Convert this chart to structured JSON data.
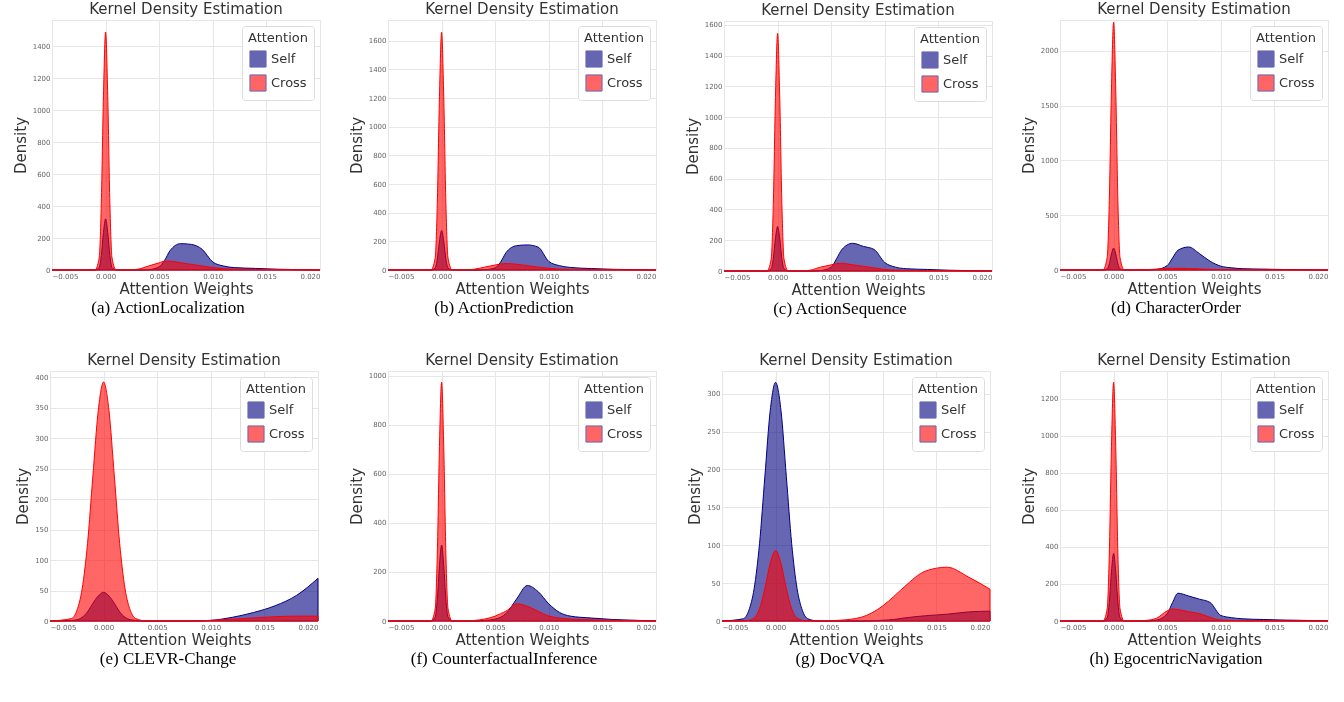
{
  "chart_data": [
    {
      "type": "area",
      "title": "Kernel Density Estimation",
      "xlabel": "Attention Weights",
      "ylabel": "Density",
      "legend_title": "Attention",
      "legend": "top right",
      "grid": true,
      "annotations": [
        "(a) ActionLocalization"
      ],
      "x": [
        -0.005,
        -0.001,
        -0.0006,
        -0.0004,
        -0.0002,
        0,
        0.0002,
        0.0004,
        0.0006,
        0.001,
        0.002,
        0.003,
        0.004,
        0.005,
        0.0055,
        0.006,
        0.007,
        0.008,
        0.009,
        0.01,
        0.011,
        0.012,
        0.014,
        0.016,
        0.018,
        0.02
      ],
      "xlim": [
        -0.005,
        0.02
      ],
      "xticks": [
        {
          "value": -0.005,
          "label": "−0.005"
        },
        {
          "value": 0,
          "label": "0.000"
        },
        {
          "value": 0.005,
          "label": "0.005"
        },
        {
          "value": 0.01,
          "label": "0.010"
        },
        {
          "value": 0.015,
          "label": "0.015"
        },
        {
          "value": 0.02,
          "label": "0.020"
        }
      ],
      "ylim": [
        0,
        1565
      ],
      "yticks": [
        0,
        200,
        400,
        600,
        800,
        1000,
        1200,
        1400
      ],
      "series": [
        {
          "name": "Self",
          "color": "#000080",
          "values": [
            0,
            0,
            16,
            90,
            235,
            320,
            235,
            90,
            16,
            0,
            0,
            0,
            2,
            20,
            60,
            120,
            165,
            160,
            130,
            50,
            25,
            15,
            10,
            5,
            2,
            0
          ]
        },
        {
          "name": "Cross",
          "color": "#ff0000",
          "values": [
            0,
            0,
            75,
            415,
            1090,
            1490,
            1090,
            415,
            75,
            0,
            0,
            5,
            25,
            45,
            55,
            55,
            45,
            35,
            25,
            15,
            8,
            5,
            3,
            2,
            1,
            0
          ]
        }
      ]
    },
    {
      "type": "area",
      "title": "Kernel Density Estimation",
      "xlabel": "Attention Weights",
      "ylabel": "Density",
      "legend_title": "Attention",
      "legend": "top right",
      "grid": true,
      "annotations": [
        "(b) ActionPrediction"
      ],
      "x": [
        -0.005,
        -0.001,
        -0.0006,
        -0.0004,
        -0.0002,
        0,
        0.0002,
        0.0004,
        0.0006,
        0.001,
        0.002,
        0.003,
        0.004,
        0.005,
        0.0055,
        0.006,
        0.007,
        0.008,
        0.009,
        0.01,
        0.011,
        0.012,
        0.014,
        0.016,
        0.018,
        0.02
      ],
      "xlim": [
        -0.005,
        0.02
      ],
      "xticks": [
        {
          "value": -0.005,
          "label": "−0.005"
        },
        {
          "value": 0,
          "label": "0.000"
        },
        {
          "value": 0.005,
          "label": "0.005"
        },
        {
          "value": 0.01,
          "label": "0.010"
        },
        {
          "value": 0.015,
          "label": "0.015"
        },
        {
          "value": 0.02,
          "label": "0.020"
        }
      ],
      "ylim": [
        0,
        1745
      ],
      "yticks": [
        0,
        200,
        400,
        600,
        800,
        1000,
        1200,
        1400,
        1600
      ],
      "series": [
        {
          "name": "Self",
          "color": "#000080",
          "values": [
            0,
            0,
            14,
            77,
            200,
            275,
            200,
            77,
            14,
            0,
            0,
            0,
            2,
            15,
            55,
            120,
            170,
            175,
            160,
            60,
            30,
            18,
            10,
            5,
            2,
            0
          ]
        },
        {
          "name": "Cross",
          "color": "#ff0000",
          "values": [
            0,
            0,
            83,
            465,
            1210,
            1660,
            1210,
            465,
            83,
            0,
            0,
            5,
            20,
            35,
            42,
            45,
            40,
            30,
            20,
            12,
            6,
            4,
            2,
            1,
            0,
            0
          ]
        }
      ]
    },
    {
      "type": "area",
      "title": "Kernel Density Estimation",
      "xlabel": "Attention Weights",
      "ylabel": "Density",
      "legend_title": "Attention",
      "legend": "top right",
      "grid": true,
      "annotations": [
        "(c) ActionSequence"
      ],
      "x": [
        -0.005,
        -0.001,
        -0.0006,
        -0.0004,
        -0.0002,
        0,
        0.0002,
        0.0004,
        0.0006,
        0.001,
        0.002,
        0.003,
        0.004,
        0.005,
        0.0055,
        0.006,
        0.007,
        0.008,
        0.009,
        0.01,
        0.011,
        0.012,
        0.014,
        0.016,
        0.018,
        0.02
      ],
      "xlim": [
        -0.005,
        0.02
      ],
      "xticks": [
        {
          "value": -0.005,
          "label": "−0.005"
        },
        {
          "value": 0,
          "label": "0.000"
        },
        {
          "value": 0.005,
          "label": "0.005"
        },
        {
          "value": 0.01,
          "label": "0.010"
        },
        {
          "value": 0.015,
          "label": "0.015"
        },
        {
          "value": 0.02,
          "label": "0.020"
        }
      ],
      "ylim": [
        0,
        1625
      ],
      "yticks": [
        0,
        200,
        400,
        600,
        800,
        1000,
        1200,
        1400,
        1600
      ],
      "series": [
        {
          "name": "Self",
          "color": "#000080",
          "values": [
            0,
            0,
            15,
            81,
            212,
            290,
            212,
            81,
            15,
            0,
            0,
            0,
            3,
            25,
            80,
            140,
            180,
            160,
            140,
            55,
            25,
            15,
            10,
            5,
            2,
            0
          ]
        },
        {
          "name": "Cross",
          "color": "#ff0000",
          "values": [
            0,
            0,
            77,
            433,
            1128,
            1545,
            1128,
            433,
            77,
            0,
            0,
            5,
            25,
            40,
            48,
            50,
            40,
            30,
            20,
            10,
            6,
            4,
            2,
            1,
            0,
            0
          ]
        }
      ]
    },
    {
      "type": "area",
      "title": "Kernel Density Estimation",
      "xlabel": "Attention Weights",
      "ylabel": "Density",
      "legend_title": "Attention",
      "legend": "top right",
      "grid": true,
      "annotations": [
        "(d) CharacterOrder"
      ],
      "x": [
        -0.005,
        -0.001,
        -0.0006,
        -0.0004,
        -0.0002,
        0,
        0.0002,
        0.0004,
        0.0006,
        0.001,
        0.002,
        0.003,
        0.004,
        0.005,
        0.0055,
        0.006,
        0.007,
        0.008,
        0.009,
        0.01,
        0.011,
        0.012,
        0.014,
        0.016,
        0.018,
        0.02
      ],
      "xlim": [
        -0.005,
        0.02
      ],
      "xticks": [
        {
          "value": -0.005,
          "label": "−0.005"
        },
        {
          "value": 0,
          "label": "0.000"
        },
        {
          "value": 0.005,
          "label": "0.005"
        },
        {
          "value": 0.01,
          "label": "0.010"
        },
        {
          "value": 0.015,
          "label": "0.015"
        },
        {
          "value": 0.02,
          "label": "0.020"
        }
      ],
      "ylim": [
        0,
        2280
      ],
      "yticks": [
        0,
        500,
        1000,
        1500,
        2000
      ],
      "series": [
        {
          "name": "Self",
          "color": "#000080",
          "values": [
            0,
            0,
            10,
            56,
            146,
            200,
            146,
            56,
            10,
            0,
            0,
            0,
            5,
            40,
            110,
            180,
            210,
            150,
            80,
            35,
            20,
            12,
            8,
            4,
            2,
            0
          ]
        },
        {
          "name": "Cross",
          "color": "#ff0000",
          "values": [
            0,
            0,
            113,
            633,
            1650,
            2260,
            1650,
            633,
            113,
            0,
            0,
            2,
            8,
            15,
            16,
            16,
            14,
            10,
            6,
            3,
            2,
            1,
            0,
            0,
            0,
            0
          ]
        }
      ]
    },
    {
      "type": "area",
      "title": "Kernel Density Estimation",
      "xlabel": "Attention Weights",
      "ylabel": "Density",
      "legend_title": "Attention",
      "legend": "top right",
      "grid": true,
      "annotations": [
        "(e) CLEVR-Change"
      ],
      "x": [
        -0.005,
        -0.003,
        -0.0025,
        -0.002,
        -0.0015,
        -0.001,
        -0.0005,
        0,
        0.0005,
        0.001,
        0.0015,
        0.002,
        0.0025,
        0.003,
        0.004,
        0.006,
        0.008,
        0.01,
        0.011,
        0.012,
        0.014,
        0.016,
        0.018,
        0.02
      ],
      "xlim": [
        -0.005,
        0.02
      ],
      "xticks": [
        {
          "value": -0.005,
          "label": "−0.005"
        },
        {
          "value": 0,
          "label": "0.000"
        },
        {
          "value": 0.005,
          "label": "0.005"
        },
        {
          "value": 0.01,
          "label": "0.010"
        },
        {
          "value": 0.015,
          "label": "0.015"
        },
        {
          "value": 0.02,
          "label": "0.020"
        }
      ],
      "ylim": [
        0,
        410
      ],
      "yticks": [
        0,
        50,
        100,
        150,
        200,
        250,
        300,
        350,
        400
      ],
      "series": [
        {
          "name": "Self",
          "color": "#000080",
          "values": [
            0,
            1,
            2,
            6,
            15,
            29,
            41,
            47,
            41,
            29,
            15,
            6,
            2,
            1,
            0,
            0,
            0,
            1,
            3,
            6,
            14,
            25,
            42,
            70
          ]
        },
        {
          "name": "Cross",
          "color": "#ff0000",
          "values": [
            0,
            4,
            17,
            53,
            127,
            238,
            345,
            392,
            345,
            238,
            127,
            53,
            17,
            4,
            0,
            0,
            0,
            1,
            2,
            3,
            5,
            7,
            8,
            8
          ]
        }
      ]
    },
    {
      "type": "area",
      "title": "Kernel Density Estimation",
      "xlabel": "Attention Weights",
      "ylabel": "Density",
      "legend_title": "Attention",
      "legend": "top right",
      "grid": true,
      "annotations": [
        "(f) CounterfactualInference"
      ],
      "x": [
        -0.005,
        -0.001,
        -0.0006,
        -0.0004,
        -0.0002,
        0,
        0.0002,
        0.0004,
        0.0006,
        0.001,
        0.002,
        0.003,
        0.004,
        0.005,
        0.0055,
        0.006,
        0.007,
        0.008,
        0.009,
        0.01,
        0.011,
        0.012,
        0.014,
        0.016,
        0.018,
        0.02
      ],
      "xlim": [
        -0.005,
        0.02
      ],
      "xticks": [
        {
          "value": -0.005,
          "label": "−0.005"
        },
        {
          "value": 0,
          "label": "0.000"
        },
        {
          "value": 0.005,
          "label": "0.005"
        },
        {
          "value": 0.01,
          "label": "0.010"
        },
        {
          "value": 0.015,
          "label": "0.015"
        },
        {
          "value": 0.02,
          "label": "0.020"
        }
      ],
      "ylim": [
        0,
        1020
      ],
      "yticks": [
        0,
        200,
        400,
        600,
        800,
        1000
      ],
      "series": [
        {
          "name": "Self",
          "color": "#000080",
          "values": [
            0,
            0,
            16,
            87,
            226,
            310,
            226,
            87,
            16,
            0,
            0,
            0,
            2,
            8,
            15,
            30,
            90,
            145,
            120,
            70,
            35,
            20,
            12,
            6,
            3,
            0
          ]
        },
        {
          "name": "Cross",
          "color": "#ff0000",
          "values": [
            0,
            0,
            49,
            273,
            712,
            975,
            712,
            273,
            49,
            0,
            0,
            2,
            8,
            20,
            30,
            40,
            70,
            60,
            40,
            20,
            12,
            8,
            5,
            3,
            1,
            0
          ]
        }
      ]
    },
    {
      "type": "area",
      "title": "Kernel Density Estimation",
      "xlabel": "Attention Weights",
      "ylabel": "Density",
      "legend_title": "Attention",
      "legend": "top right",
      "grid": true,
      "annotations": [
        "(g) DocVQA"
      ],
      "x": [
        -0.005,
        -0.003,
        -0.0025,
        -0.002,
        -0.0015,
        -0.001,
        -0.0005,
        0,
        0.0005,
        0.001,
        0.0015,
        0.002,
        0.0025,
        0.003,
        0.004,
        0.006,
        0.008,
        0.01,
        0.011,
        0.012,
        0.014,
        0.016,
        0.018,
        0.02
      ],
      "xlim": [
        -0.005,
        0.02
      ],
      "xticks": [
        {
          "value": -0.005,
          "label": "−0.005"
        },
        {
          "value": 0,
          "label": "0.000"
        },
        {
          "value": 0.005,
          "label": "0.005"
        },
        {
          "value": 0.01,
          "label": "0.010"
        },
        {
          "value": 0.015,
          "label": "0.015"
        },
        {
          "value": 0.02,
          "label": "0.020"
        }
      ],
      "ylim": [
        0,
        330
      ],
      "yticks": [
        0,
        50,
        100,
        150,
        200,
        250,
        300
      ],
      "series": [
        {
          "name": "Self",
          "color": "#000080",
          "values": [
            0,
            3,
            14,
            43,
            102,
            191,
            278,
            315,
            278,
            191,
            102,
            43,
            14,
            3,
            0,
            0,
            0,
            1,
            2,
            4,
            7,
            9,
            12,
            13
          ]
        },
        {
          "name": "Cross",
          "color": "#ff0000",
          "values": [
            0,
            0,
            1,
            4,
            16,
            43,
            76,
            93,
            76,
            43,
            16,
            4,
            1,
            0,
            0,
            1,
            5,
            20,
            32,
            45,
            66,
            71,
            58,
            42
          ]
        }
      ]
    },
    {
      "type": "area",
      "title": "Kernel Density Estimation",
      "xlabel": "Attention Weights",
      "ylabel": "Density",
      "legend_title": "Attention",
      "legend": "top right",
      "grid": true,
      "annotations": [
        "(h) EgocentricNavigation"
      ],
      "x": [
        -0.005,
        -0.001,
        -0.0006,
        -0.0004,
        -0.0002,
        0,
        0.0002,
        0.0004,
        0.0006,
        0.001,
        0.002,
        0.003,
        0.004,
        0.005,
        0.0055,
        0.006,
        0.007,
        0.008,
        0.009,
        0.01,
        0.011,
        0.012,
        0.014,
        0.016,
        0.018,
        0.02
      ],
      "xlim": [
        -0.005,
        0.02
      ],
      "xticks": [
        {
          "value": -0.005,
          "label": "−0.005"
        },
        {
          "value": 0,
          "label": "0.000"
        },
        {
          "value": 0.005,
          "label": "0.005"
        },
        {
          "value": 0.01,
          "label": "0.010"
        },
        {
          "value": 0.015,
          "label": "0.015"
        },
        {
          "value": 0.02,
          "label": "0.020"
        }
      ],
      "ylim": [
        0,
        1350
      ],
      "yticks": [
        0,
        200,
        400,
        600,
        800,
        1000,
        1200
      ],
      "series": [
        {
          "name": "Self",
          "color": "#000080",
          "values": [
            0,
            0,
            18,
            102,
            266,
            365,
            266,
            102,
            18,
            0,
            0,
            0,
            5,
            40,
            100,
            150,
            135,
            118,
            100,
            30,
            18,
            12,
            8,
            5,
            3,
            0
          ]
        },
        {
          "name": "Cross",
          "color": "#ff0000",
          "values": [
            0,
            0,
            65,
            361,
            942,
            1290,
            942,
            361,
            65,
            0,
            0,
            3,
            15,
            55,
            65,
            62,
            50,
            40,
            20,
            5,
            3,
            2,
            1,
            0,
            0,
            0
          ]
        }
      ]
    }
  ]
}
